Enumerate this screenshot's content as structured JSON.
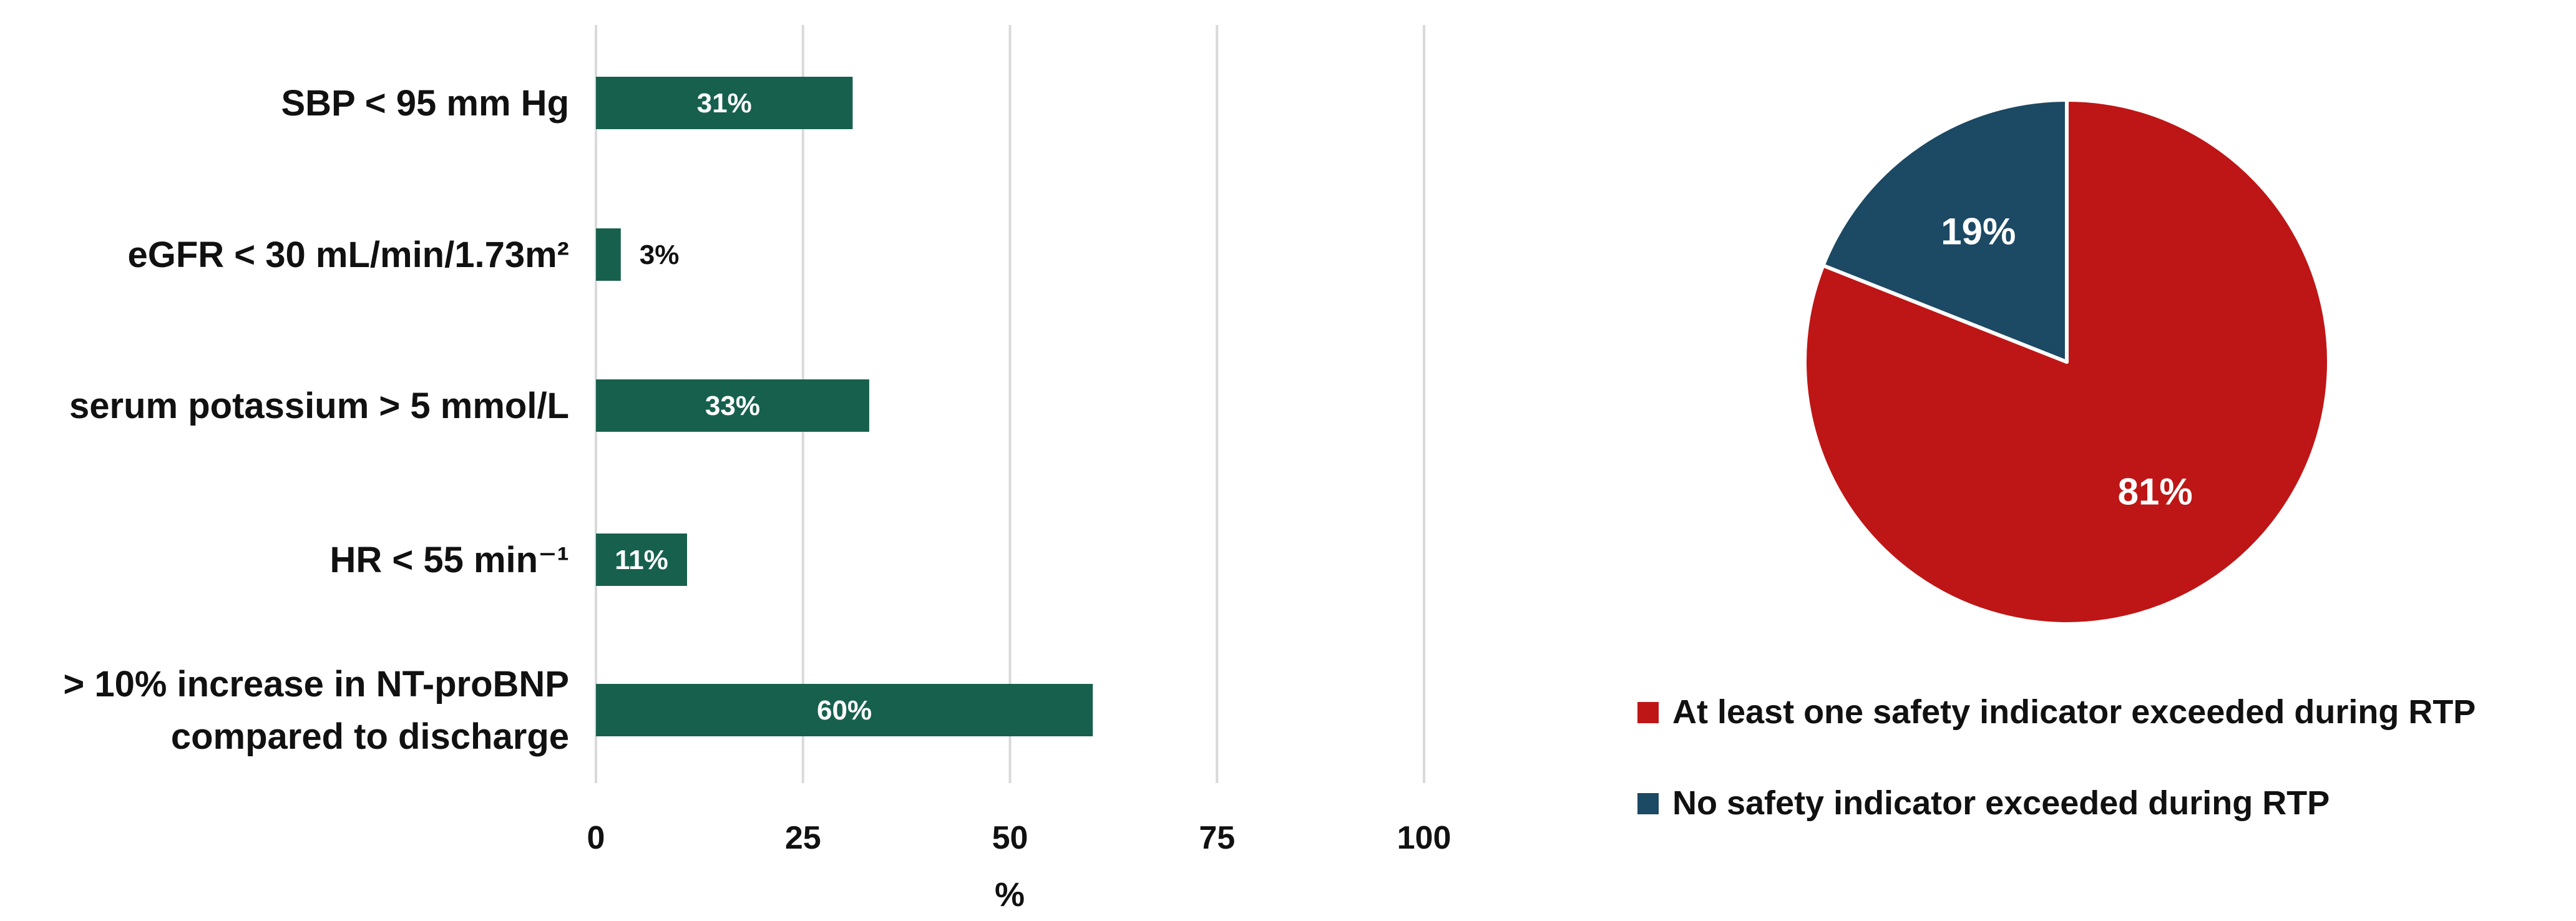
{
  "chart_data": [
    {
      "type": "bar",
      "orientation": "horizontal",
      "categories": [
        [
          "SBP < 95 mm Hg"
        ],
        [
          "eGFR < 30 mL/min/1.73m²"
        ],
        [
          "serum potassium > 5 mmol/L"
        ],
        [
          "HR < 55 min⁻¹"
        ],
        [
          "> 10% increase in NT-proBNP",
          "compared to discharge"
        ]
      ],
      "values": [
        31,
        3,
        33,
        11,
        60
      ],
      "data_labels": [
        "31%",
        "3%",
        "33%",
        "11%",
        "60%"
      ],
      "xlim": [
        0,
        100
      ],
      "xticks": [
        0,
        25,
        50,
        75,
        100
      ],
      "xtick_labels": [
        "0",
        "25",
        "50",
        "75",
        "100"
      ],
      "xlabel": "%",
      "grid": "vertical",
      "color": "#17604e"
    },
    {
      "type": "pie",
      "slices": [
        {
          "label": "At least one safety indicator exceeded during RTP",
          "value": 81,
          "data_label": "81%",
          "color": "#be1616"
        },
        {
          "label": "No safety indicator exceeded during RTP",
          "value": 19,
          "data_label": "19%",
          "color": "#1c4964"
        }
      ],
      "legend": "bottom"
    }
  ]
}
